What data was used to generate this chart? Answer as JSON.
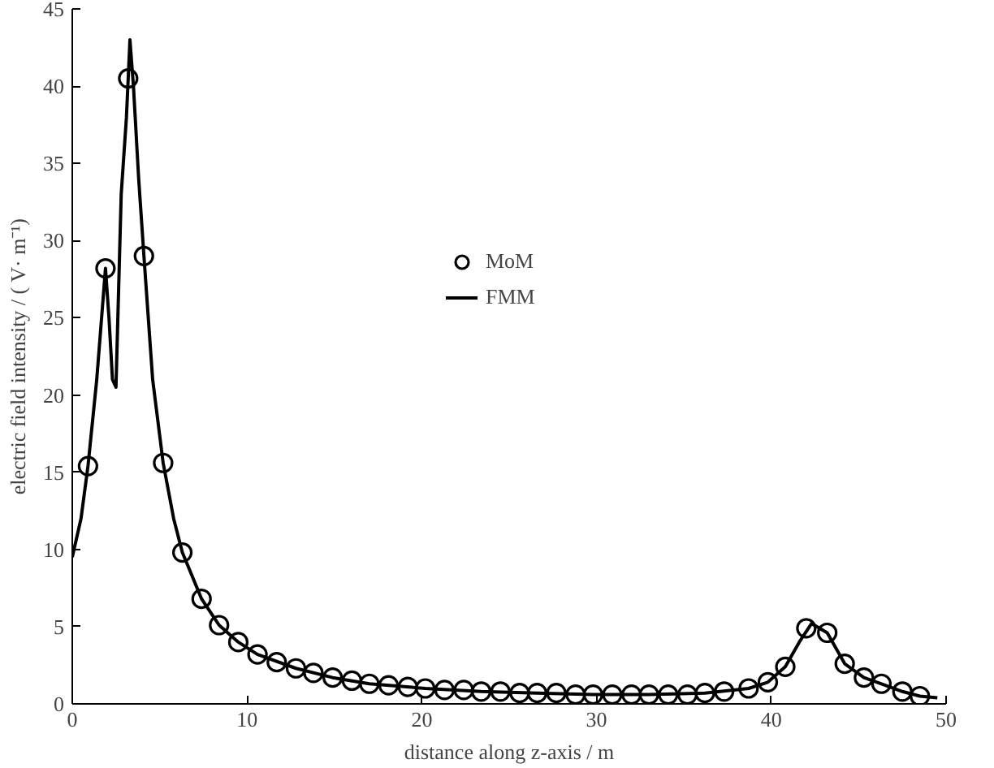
{
  "chart_data": {
    "type": "line",
    "xlabel": "distance along z-axis / m",
    "ylabel": "electric field intensity / ( V· m⁻¹)",
    "xlim": [
      0,
      50
    ],
    "ylim": [
      0,
      45
    ],
    "xticks": [
      0,
      10,
      20,
      30,
      40,
      50
    ],
    "yticks": [
      0,
      5,
      10,
      15,
      20,
      25,
      30,
      35,
      40,
      45
    ],
    "grid": false,
    "legend": "top right",
    "series": [
      {
        "name": "MoM",
        "type": "scatter",
        "marker": "circle",
        "color": "#000000",
        "x": [
          0.9,
          1.9,
          3.2,
          4.1,
          5.2,
          6.3,
          7.4,
          8.4,
          9.5,
          10.6,
          11.7,
          12.8,
          13.8,
          14.9,
          16.0,
          17.0,
          18.1,
          19.2,
          20.2,
          21.3,
          22.4,
          23.4,
          24.5,
          25.6,
          26.6,
          27.7,
          28.8,
          29.8,
          30.9,
          32.0,
          33.0,
          34.1,
          35.2,
          36.2,
          37.3,
          38.7,
          39.8,
          40.8,
          42.0,
          43.2,
          44.2,
          45.3,
          46.3,
          47.5,
          48.5
        ],
        "values": [
          15.4,
          28.2,
          40.5,
          29.0,
          15.6,
          9.8,
          6.8,
          5.1,
          4.0,
          3.2,
          2.7,
          2.3,
          2.0,
          1.7,
          1.5,
          1.3,
          1.2,
          1.1,
          1.0,
          0.9,
          0.9,
          0.8,
          0.8,
          0.7,
          0.7,
          0.7,
          0.6,
          0.6,
          0.6,
          0.6,
          0.6,
          0.6,
          0.6,
          0.7,
          0.8,
          1.0,
          1.4,
          2.4,
          4.9,
          4.6,
          2.6,
          1.7,
          1.3,
          0.8,
          0.5
        ]
      },
      {
        "name": "FMM",
        "line_style": "solid",
        "color": "#000000",
        "x": [
          0,
          0.5,
          0.9,
          1.4,
          1.9,
          2.1,
          2.3,
          2.5,
          2.8,
          3.1,
          3.3,
          3.5,
          3.8,
          4.1,
          4.6,
          5.2,
          5.8,
          6.3,
          7.4,
          8.4,
          9.5,
          10.6,
          12.8,
          14.9,
          17.0,
          20.2,
          23.4,
          26.6,
          29.8,
          33.0,
          36.2,
          38.7,
          39.8,
          40.8,
          41.6,
          42.3,
          43.2,
          44.2,
          45.3,
          46.3,
          47.5,
          48.5,
          49.5
        ],
        "values": [
          9.5,
          12.0,
          15.4,
          21.0,
          28.2,
          25.0,
          21.0,
          20.5,
          33.0,
          38.0,
          43.0,
          40.0,
          34.0,
          29.0,
          21.0,
          15.6,
          12.0,
          9.8,
          6.8,
          5.1,
          4.0,
          3.2,
          2.3,
          1.7,
          1.3,
          1.0,
          0.8,
          0.7,
          0.6,
          0.6,
          0.7,
          1.0,
          1.4,
          2.4,
          4.0,
          5.2,
          4.6,
          2.6,
          1.7,
          1.3,
          0.8,
          0.5,
          0.4
        ]
      }
    ]
  }
}
